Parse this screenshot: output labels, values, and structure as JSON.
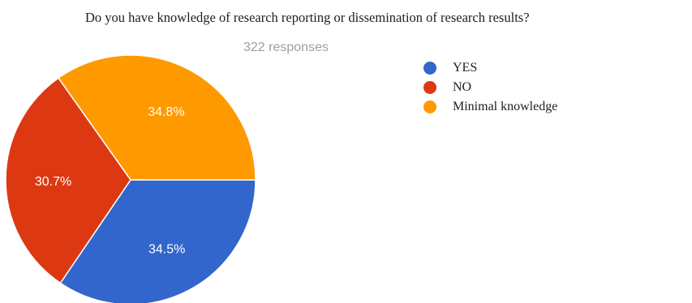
{
  "chart_data": {
    "type": "pie",
    "title": "Do you have knowledge of research reporting or dissemination of research results?",
    "subtitle": "322 responses",
    "categories": [
      "YES",
      "NO",
      "Minimal knowledge"
    ],
    "values": [
      34.5,
      30.7,
      34.8
    ],
    "labels": [
      "34.5%",
      "30.7%",
      "34.8%"
    ],
    "colors": [
      "#3366cc",
      "#dc3912",
      "#ff9900"
    ],
    "legend_position": "right"
  }
}
